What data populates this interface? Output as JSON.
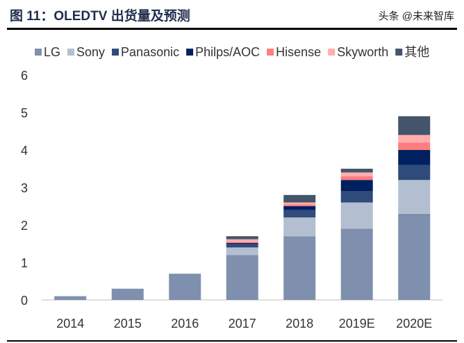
{
  "title": "图 11：OLEDTV 出货量及预测",
  "watermark": "头条 @未来智库",
  "chart_data": {
    "type": "bar",
    "stacked": true,
    "title": "OLEDTV 出货量及预测",
    "categories": [
      "2014",
      "2015",
      "2016",
      "2017",
      "2018",
      "2019E",
      "2020E"
    ],
    "ylim": [
      0,
      6
    ],
    "yticks": [
      0,
      1,
      2,
      3,
      4,
      5,
      6
    ],
    "legend": "top",
    "series": [
      {
        "name": "LG",
        "color": "#7f8fae",
        "values": [
          0.1,
          0.3,
          0.7,
          1.2,
          1.7,
          1.9,
          2.3
        ]
      },
      {
        "name": "Sony",
        "color": "#b3bed0",
        "values": [
          0,
          0,
          0,
          0.2,
          0.5,
          0.7,
          0.9
        ]
      },
      {
        "name": "Panasonic",
        "color": "#2f4b7c",
        "values": [
          0,
          0,
          0,
          0.1,
          0.2,
          0.3,
          0.4
        ]
      },
      {
        "name": "Philps/AOC",
        "color": "#002060",
        "values": [
          0,
          0,
          0,
          0.02,
          0.1,
          0.3,
          0.4
        ]
      },
      {
        "name": "Hisense",
        "color": "#ff7c80",
        "values": [
          0,
          0,
          0,
          0.03,
          0.05,
          0.1,
          0.2
        ]
      },
      {
        "name": "Skyworth",
        "color": "#ffadad",
        "values": [
          0,
          0,
          0,
          0.07,
          0.05,
          0.1,
          0.2
        ]
      },
      {
        "name": "其他",
        "color": "#44546a",
        "values": [
          0,
          0,
          0,
          0.08,
          0.2,
          0.1,
          0.5
        ]
      }
    ]
  }
}
